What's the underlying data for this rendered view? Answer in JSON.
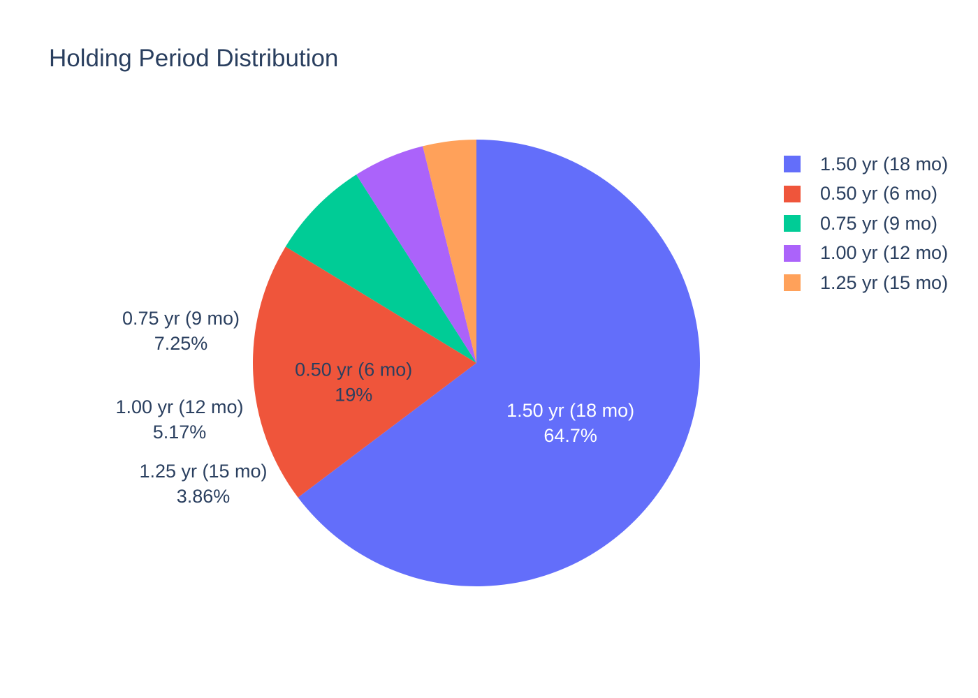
{
  "chart_data": {
    "type": "pie",
    "title": "Holding Period Distribution",
    "start_angle_deg": 90,
    "direction": "clockwise",
    "slices": [
      {
        "label": "1.50 yr (18 mo)",
        "value": 64.7,
        "percent_text": "64.7%",
        "color": "#636efa",
        "text_position": "inside",
        "text_color": "#ffffff"
      },
      {
        "label": "0.50 yr (6 mo)",
        "value": 19.0,
        "percent_text": "19%",
        "color": "#ef553b",
        "text_position": "inside",
        "text_color": "#2a3f5f"
      },
      {
        "label": "0.75 yr (9 mo)",
        "value": 7.25,
        "percent_text": "7.25%",
        "color": "#00cc96",
        "text_position": "outside",
        "text_color": "#2a3f5f"
      },
      {
        "label": "1.00 yr (12 mo)",
        "value": 5.17,
        "percent_text": "5.17%",
        "color": "#ab63fa",
        "text_position": "outside",
        "text_color": "#2a3f5f"
      },
      {
        "label": "1.25 yr (15 mo)",
        "value": 3.86,
        "percent_text": "3.86%",
        "color": "#ffa15a",
        "text_position": "outside",
        "text_color": "#2a3f5f"
      }
    ],
    "legend": {
      "position": "right",
      "entries": [
        "1.50 yr (18 mo)",
        "0.50 yr (6 mo)",
        "0.75 yr (9 mo)",
        "1.00 yr (12 mo)",
        "1.25 yr (15 mo)"
      ]
    }
  }
}
